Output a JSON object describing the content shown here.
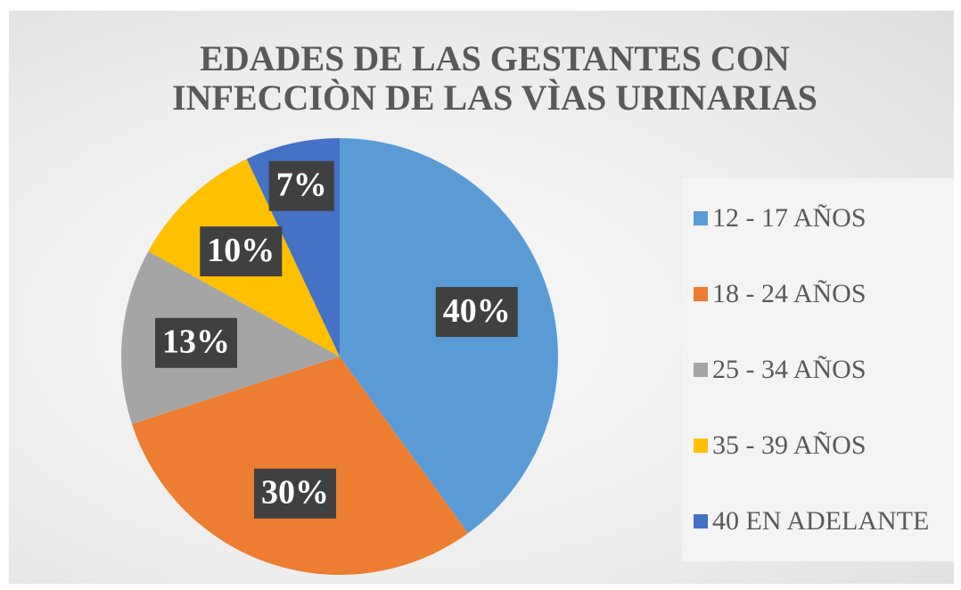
{
  "chart_data": {
    "type": "pie",
    "title": "EDADES DE LAS GESTANTES CON INFECCIÒN DE LAS VÌAS URINARIAS",
    "categories": [
      "12 - 17 AÑOS",
      "18 - 24 AÑOS",
      "25 - 34 AÑOS",
      "35 - 39 AÑOS",
      "40 EN ADELANTE"
    ],
    "values": [
      40,
      30,
      13,
      10,
      7
    ],
    "value_labels": [
      "40%",
      "30%",
      "13%",
      "10%",
      "7%"
    ],
    "colors": [
      "#5b9bd5",
      "#ed7d31",
      "#a5a5a5",
      "#ffc000",
      "#4472c4"
    ],
    "legend": "right"
  }
}
